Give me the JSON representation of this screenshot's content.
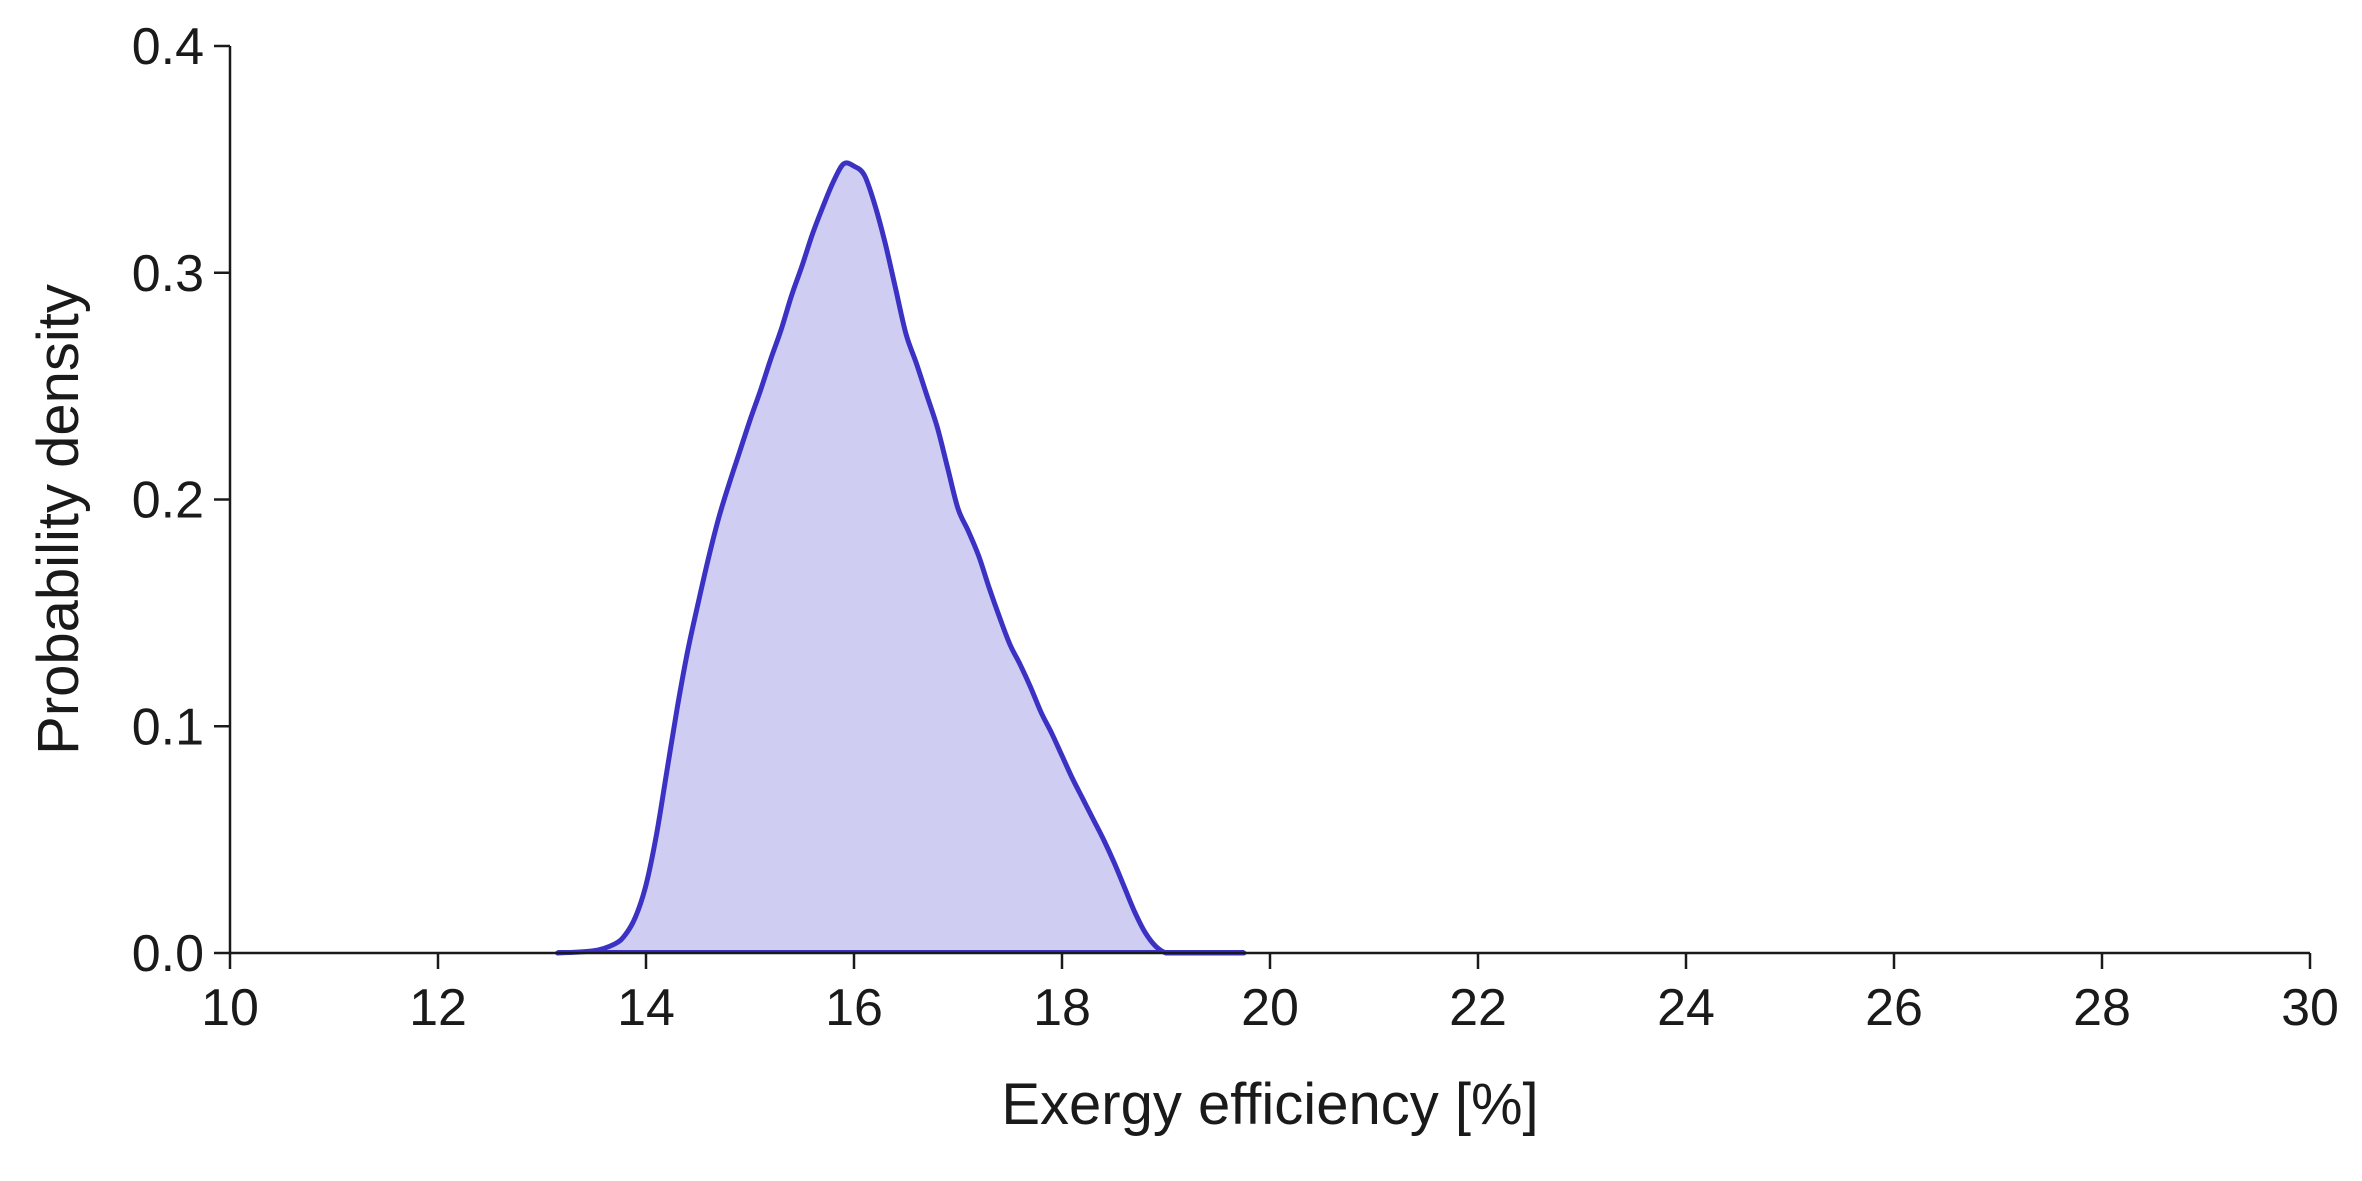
{
  "chart_data": {
    "type": "area",
    "title": "",
    "xlabel": "Exergy efficiency [%]",
    "ylabel": "Probability density",
    "xlim": [
      10,
      30
    ],
    "ylim": [
      0,
      0.4
    ],
    "x_ticks": [
      "10",
      "12",
      "14",
      "16",
      "18",
      "20",
      "22",
      "24",
      "26",
      "28",
      "30"
    ],
    "y_ticks": [
      "0.0",
      "0.1",
      "0.2",
      "0.3",
      "0.4"
    ],
    "grid": false,
    "legend": "none",
    "colors": {
      "line": "#3b32c4",
      "fill": "#cfcdf2",
      "axis": "#1a1a1a"
    },
    "series": [
      {
        "x": [
          13.15,
          13.5,
          13.7,
          13.8,
          13.9,
          14.0,
          14.1,
          14.2,
          14.3,
          14.4,
          14.5,
          14.6,
          14.7,
          14.8,
          14.9,
          15.0,
          15.1,
          15.2,
          15.3,
          15.4,
          15.5,
          15.6,
          15.7,
          15.8,
          15.9,
          16.0,
          16.1,
          16.2,
          16.3,
          16.4,
          16.5,
          16.6,
          16.7,
          16.8,
          16.9,
          17.0,
          17.1,
          17.2,
          17.3,
          17.4,
          17.5,
          17.6,
          17.7,
          17.8,
          17.9,
          18.0,
          18.1,
          18.2,
          18.3,
          18.4,
          18.5,
          18.6,
          18.7,
          18.8,
          18.9,
          19.0,
          19.1,
          19.2,
          19.3,
          19.4,
          19.5,
          19.75
        ],
        "y": [
          0.0,
          0.001,
          0.004,
          0.008,
          0.016,
          0.03,
          0.052,
          0.08,
          0.108,
          0.133,
          0.154,
          0.174,
          0.192,
          0.207,
          0.221,
          0.235,
          0.248,
          0.262,
          0.275,
          0.29,
          0.303,
          0.317,
          0.329,
          0.34,
          0.348,
          0.347,
          0.343,
          0.33,
          0.313,
          0.293,
          0.273,
          0.26,
          0.246,
          0.232,
          0.214,
          0.196,
          0.186,
          0.175,
          0.161,
          0.148,
          0.136,
          0.127,
          0.117,
          0.106,
          0.097,
          0.087,
          0.077,
          0.068,
          0.059,
          0.05,
          0.04,
          0.029,
          0.018,
          0.009,
          0.003,
          0.0,
          0.0,
          0.0,
          0.0,
          0.0,
          0.0,
          0.0
        ]
      }
    ]
  }
}
